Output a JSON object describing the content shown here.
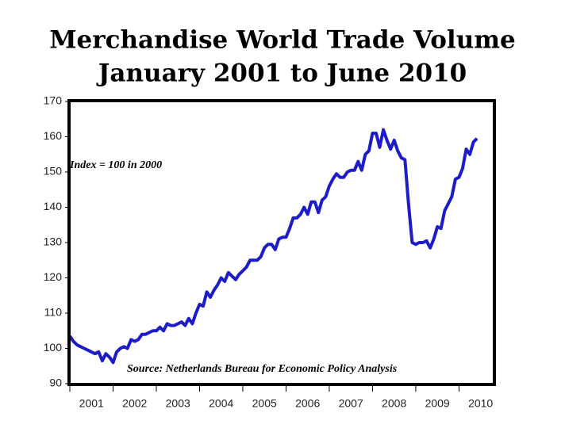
{
  "chart_data": {
    "type": "line",
    "title": [
      "Merchandise World Trade Volume",
      "January 2001 to June 2010"
    ],
    "annotations": [
      "Index = 100 in 2000",
      "Source: Netherlands Bureau for Economic Policy Analysis"
    ],
    "x": [
      2001,
      2001.083,
      2001.167,
      2001.25,
      2001.333,
      2001.417,
      2001.5,
      2001.583,
      2001.667,
      2001.75,
      2001.833,
      2001.917,
      2002,
      2002.083,
      2002.167,
      2002.25,
      2002.333,
      2002.417,
      2002.5,
      2002.583,
      2002.667,
      2002.75,
      2002.833,
      2002.917,
      2003,
      2003.083,
      2003.167,
      2003.25,
      2003.333,
      2003.417,
      2003.5,
      2003.583,
      2003.667,
      2003.75,
      2003.833,
      2003.917,
      2004,
      2004.083,
      2004.167,
      2004.25,
      2004.333,
      2004.417,
      2004.5,
      2004.583,
      2004.667,
      2004.75,
      2004.833,
      2004.917,
      2005,
      2005.083,
      2005.167,
      2005.25,
      2005.333,
      2005.417,
      2005.5,
      2005.583,
      2005.667,
      2005.75,
      2005.833,
      2005.917,
      2006,
      2006.083,
      2006.167,
      2006.25,
      2006.333,
      2006.417,
      2006.5,
      2006.583,
      2006.667,
      2006.75,
      2006.833,
      2006.917,
      2007,
      2007.083,
      2007.167,
      2007.25,
      2007.333,
      2007.417,
      2007.5,
      2007.583,
      2007.667,
      2007.75,
      2007.833,
      2007.917,
      2008,
      2008.083,
      2008.167,
      2008.25,
      2008.333,
      2008.417,
      2008.5,
      2008.583,
      2008.667,
      2008.75,
      2008.833,
      2008.917,
      2009,
      2009.083,
      2009.167,
      2009.25,
      2009.333,
      2009.417,
      2009.5,
      2009.583,
      2009.667,
      2009.75,
      2009.833,
      2009.917,
      2010,
      2010.083,
      2010.167,
      2010.25,
      2010.333,
      2010.417
    ],
    "series": [
      {
        "name": "Merchandise World Trade Volume",
        "color": "#1c1cc8",
        "values": [
          103.5,
          102,
          101,
          100.5,
          100,
          99.5,
          99,
          98.5,
          99,
          96.5,
          98.5,
          97.5,
          96,
          99,
          100,
          100.5,
          100,
          102.5,
          102,
          102.5,
          104,
          104,
          104.5,
          105,
          105,
          106,
          105,
          107,
          106.5,
          106.5,
          107,
          107.5,
          106.5,
          108.5,
          107,
          110,
          112.5,
          112,
          116,
          114.5,
          116.5,
          118,
          120,
          119,
          121.5,
          120.5,
          119.5,
          121,
          122,
          123,
          125,
          125,
          125,
          126,
          128.5,
          129.5,
          129.5,
          128,
          131,
          131.5,
          131.5,
          134,
          137,
          137,
          138,
          140,
          138,
          141.5,
          141.5,
          138.5,
          142,
          143,
          146,
          148,
          149.5,
          148.5,
          148.5,
          150,
          150.5,
          150.5,
          153,
          150.5,
          155,
          156,
          161,
          161,
          157,
          162,
          159,
          156.5,
          159,
          156,
          154,
          153.5,
          141,
          130,
          129.5,
          130,
          130,
          130.5,
          128.5,
          131,
          134.5,
          134,
          139,
          141,
          143,
          148,
          148.5,
          151,
          156.5,
          155,
          158.5,
          159.5
        ]
      }
    ],
    "xlim": [
      2001,
      2010.8
    ],
    "xticks": [
      {
        "value": 2001.5,
        "label": "2001"
      },
      {
        "value": 2002.5,
        "label": "2002"
      },
      {
        "value": 2003.5,
        "label": "2003"
      },
      {
        "value": 2004.5,
        "label": "2004"
      },
      {
        "value": 2005.5,
        "label": "2005"
      },
      {
        "value": 2006.5,
        "label": "2006"
      },
      {
        "value": 2007.5,
        "label": "2007"
      },
      {
        "value": 2008.5,
        "label": "2008"
      },
      {
        "value": 2009.5,
        "label": "2009"
      },
      {
        "value": 2010.5,
        "label": "2010"
      }
    ],
    "xtick_marks": [
      2001,
      2002,
      2003,
      2004,
      2005,
      2006,
      2007,
      2008,
      2009,
      2010
    ],
    "ylim": [
      90,
      170
    ],
    "yticks": [
      90,
      100,
      110,
      120,
      130,
      140,
      150,
      160,
      170
    ],
    "grid": false
  }
}
